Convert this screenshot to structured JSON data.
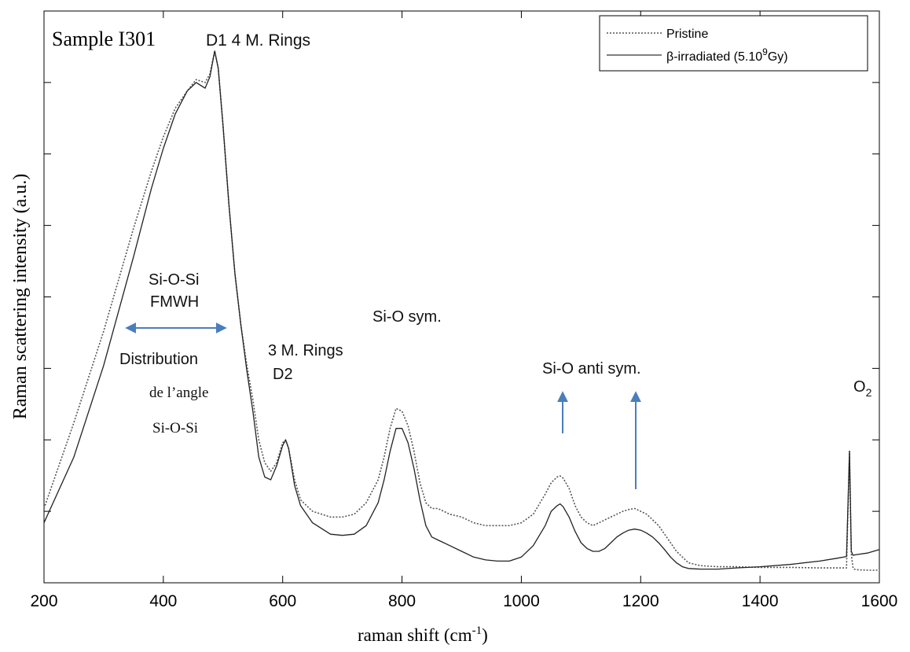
{
  "chart_data": {
    "type": "line",
    "title": "Sample I301",
    "xlabel": "raman shift (cm-1)",
    "xlabel_base": "raman shift (cm",
    "xlabel_sup": "-1",
    "xlabel_close": ")",
    "ylabel": "Raman scattering intensity (a.u.)",
    "xlim": [
      200,
      1600
    ],
    "ylim": [
      0,
      100
    ],
    "x_ticks": [
      "200",
      "400",
      "600",
      "800",
      "1000",
      "1200",
      "1400",
      "1600"
    ],
    "grid": false,
    "legend_position": "top-right",
    "legend": [
      {
        "label": "Pristine",
        "style": "dotted"
      },
      {
        "label_base": "β-irradiated (5.10",
        "label_sup": "9",
        "label_end": "Gy)",
        "label": "β-irradiated (5.109Gy)",
        "style": "solid"
      }
    ],
    "series": [
      {
        "name": "Pristine",
        "style": "dotted",
        "color": "#555555",
        "x": [
          200,
          250,
          300,
          350,
          380,
          400,
          420,
          440,
          455,
          470,
          478,
          486,
          492,
          500,
          510,
          520,
          530,
          540,
          550,
          560,
          570,
          580,
          590,
          600,
          605,
          610,
          620,
          630,
          650,
          680,
          700,
          720,
          740,
          760,
          770,
          780,
          790,
          800,
          810,
          820,
          830,
          840,
          850,
          860,
          880,
          900,
          920,
          940,
          960,
          980,
          1000,
          1020,
          1040,
          1050,
          1060,
          1065,
          1070,
          1080,
          1090,
          1100,
          1110,
          1120,
          1130,
          1140,
          1150,
          1160,
          1170,
          1180,
          1190,
          1200,
          1210,
          1220,
          1230,
          1240,
          1250,
          1260,
          1270,
          1280,
          1300,
          1330,
          1360,
          1400,
          1450,
          1500,
          1530,
          1545,
          1550,
          1553,
          1556,
          1560,
          1580,
          1600
        ],
        "y": [
          13,
          28,
          44,
          62,
          72,
          78,
          83,
          86,
          88,
          87.5,
          89,
          93,
          90,
          80,
          66,
          54,
          45,
          38,
          32,
          25,
          21,
          19.5,
          21,
          24.5,
          25,
          23.5,
          18,
          14.5,
          12.5,
          11.5,
          11.5,
          12,
          14,
          18,
          22,
          27,
          30.5,
          30,
          27.5,
          23,
          17.5,
          14,
          13,
          13,
          12,
          11.5,
          10.5,
          10,
          10,
          10,
          10.5,
          12,
          15.5,
          17.5,
          18.5,
          18.7,
          18.3,
          16.5,
          13.5,
          11.5,
          10.5,
          10,
          10.5,
          11,
          11.5,
          12,
          12.5,
          12.8,
          13,
          12.5,
          12,
          11,
          10,
          8.5,
          7,
          5.5,
          4.5,
          3.5,
          3,
          2.8,
          2.8,
          2.7,
          2.7,
          2.6,
          2.6,
          2.6,
          23,
          5,
          2.5,
          2.3,
          2.2,
          2.2
        ]
      },
      {
        "name": "β-irradiated (5.109Gy)",
        "style": "solid",
        "color": "#222222",
        "x": [
          200,
          250,
          300,
          350,
          380,
          400,
          420,
          440,
          455,
          470,
          478,
          486,
          492,
          500,
          510,
          520,
          530,
          540,
          550,
          560,
          570,
          580,
          590,
          600,
          605,
          610,
          620,
          630,
          650,
          680,
          700,
          720,
          740,
          760,
          770,
          780,
          790,
          800,
          810,
          820,
          830,
          840,
          850,
          860,
          880,
          900,
          920,
          940,
          960,
          980,
          1000,
          1020,
          1040,
          1050,
          1060,
          1065,
          1070,
          1080,
          1090,
          1100,
          1110,
          1120,
          1130,
          1140,
          1150,
          1160,
          1170,
          1180,
          1190,
          1200,
          1210,
          1220,
          1230,
          1240,
          1250,
          1260,
          1270,
          1280,
          1300,
          1330,
          1360,
          1400,
          1450,
          1500,
          1530,
          1545,
          1550,
          1553,
          1556,
          1560,
          1580,
          1600
        ],
        "y": [
          10.5,
          22,
          38,
          57,
          69,
          76,
          82,
          86,
          87.5,
          86.5,
          88.5,
          93,
          90,
          80,
          66,
          54,
          45,
          37,
          30,
          22,
          18.5,
          18,
          20.5,
          24,
          25,
          23.5,
          17,
          13.5,
          10.5,
          8.5,
          8.3,
          8.5,
          10,
          14,
          18,
          23,
          27,
          27,
          24.5,
          20,
          14.5,
          10,
          8,
          7.5,
          6.5,
          5.5,
          4.5,
          4,
          3.8,
          3.8,
          4.5,
          6.5,
          10,
          12.5,
          13.5,
          13.8,
          13.3,
          11.5,
          9,
          7,
          6,
          5.5,
          5.5,
          6,
          7,
          8,
          8.7,
          9.2,
          9.4,
          9.2,
          8.7,
          8,
          7,
          5.8,
          4.5,
          3.5,
          2.8,
          2.5,
          2.4,
          2.4,
          2.6,
          2.8,
          3.2,
          3.8,
          4.3,
          4.6,
          23,
          5.5,
          4.8,
          4.9,
          5.2,
          5.8
        ]
      }
    ],
    "annotations": [
      {
        "id": "d1",
        "text": "D1  4 M. Rings"
      },
      {
        "id": "sio-fmwh-1",
        "text": "Si-O-Si"
      },
      {
        "id": "sio-fmwh-2",
        "text": "FMWH"
      },
      {
        "id": "distribution",
        "text": "Distribution"
      },
      {
        "id": "angle",
        "text": "de l’angle"
      },
      {
        "id": "angle-2",
        "text": "Si-O-Si"
      },
      {
        "id": "three-rings",
        "text": "3 M. Rings"
      },
      {
        "id": "d2",
        "text": "D2"
      },
      {
        "id": "sio-sym",
        "text": "Si-O sym."
      },
      {
        "id": "sio-antisym",
        "text": "Si-O anti sym."
      },
      {
        "id": "o2-base",
        "text": "O"
      },
      {
        "id": "o2-sub",
        "text": "2"
      }
    ],
    "arrow_color": "#4a7ebb"
  }
}
